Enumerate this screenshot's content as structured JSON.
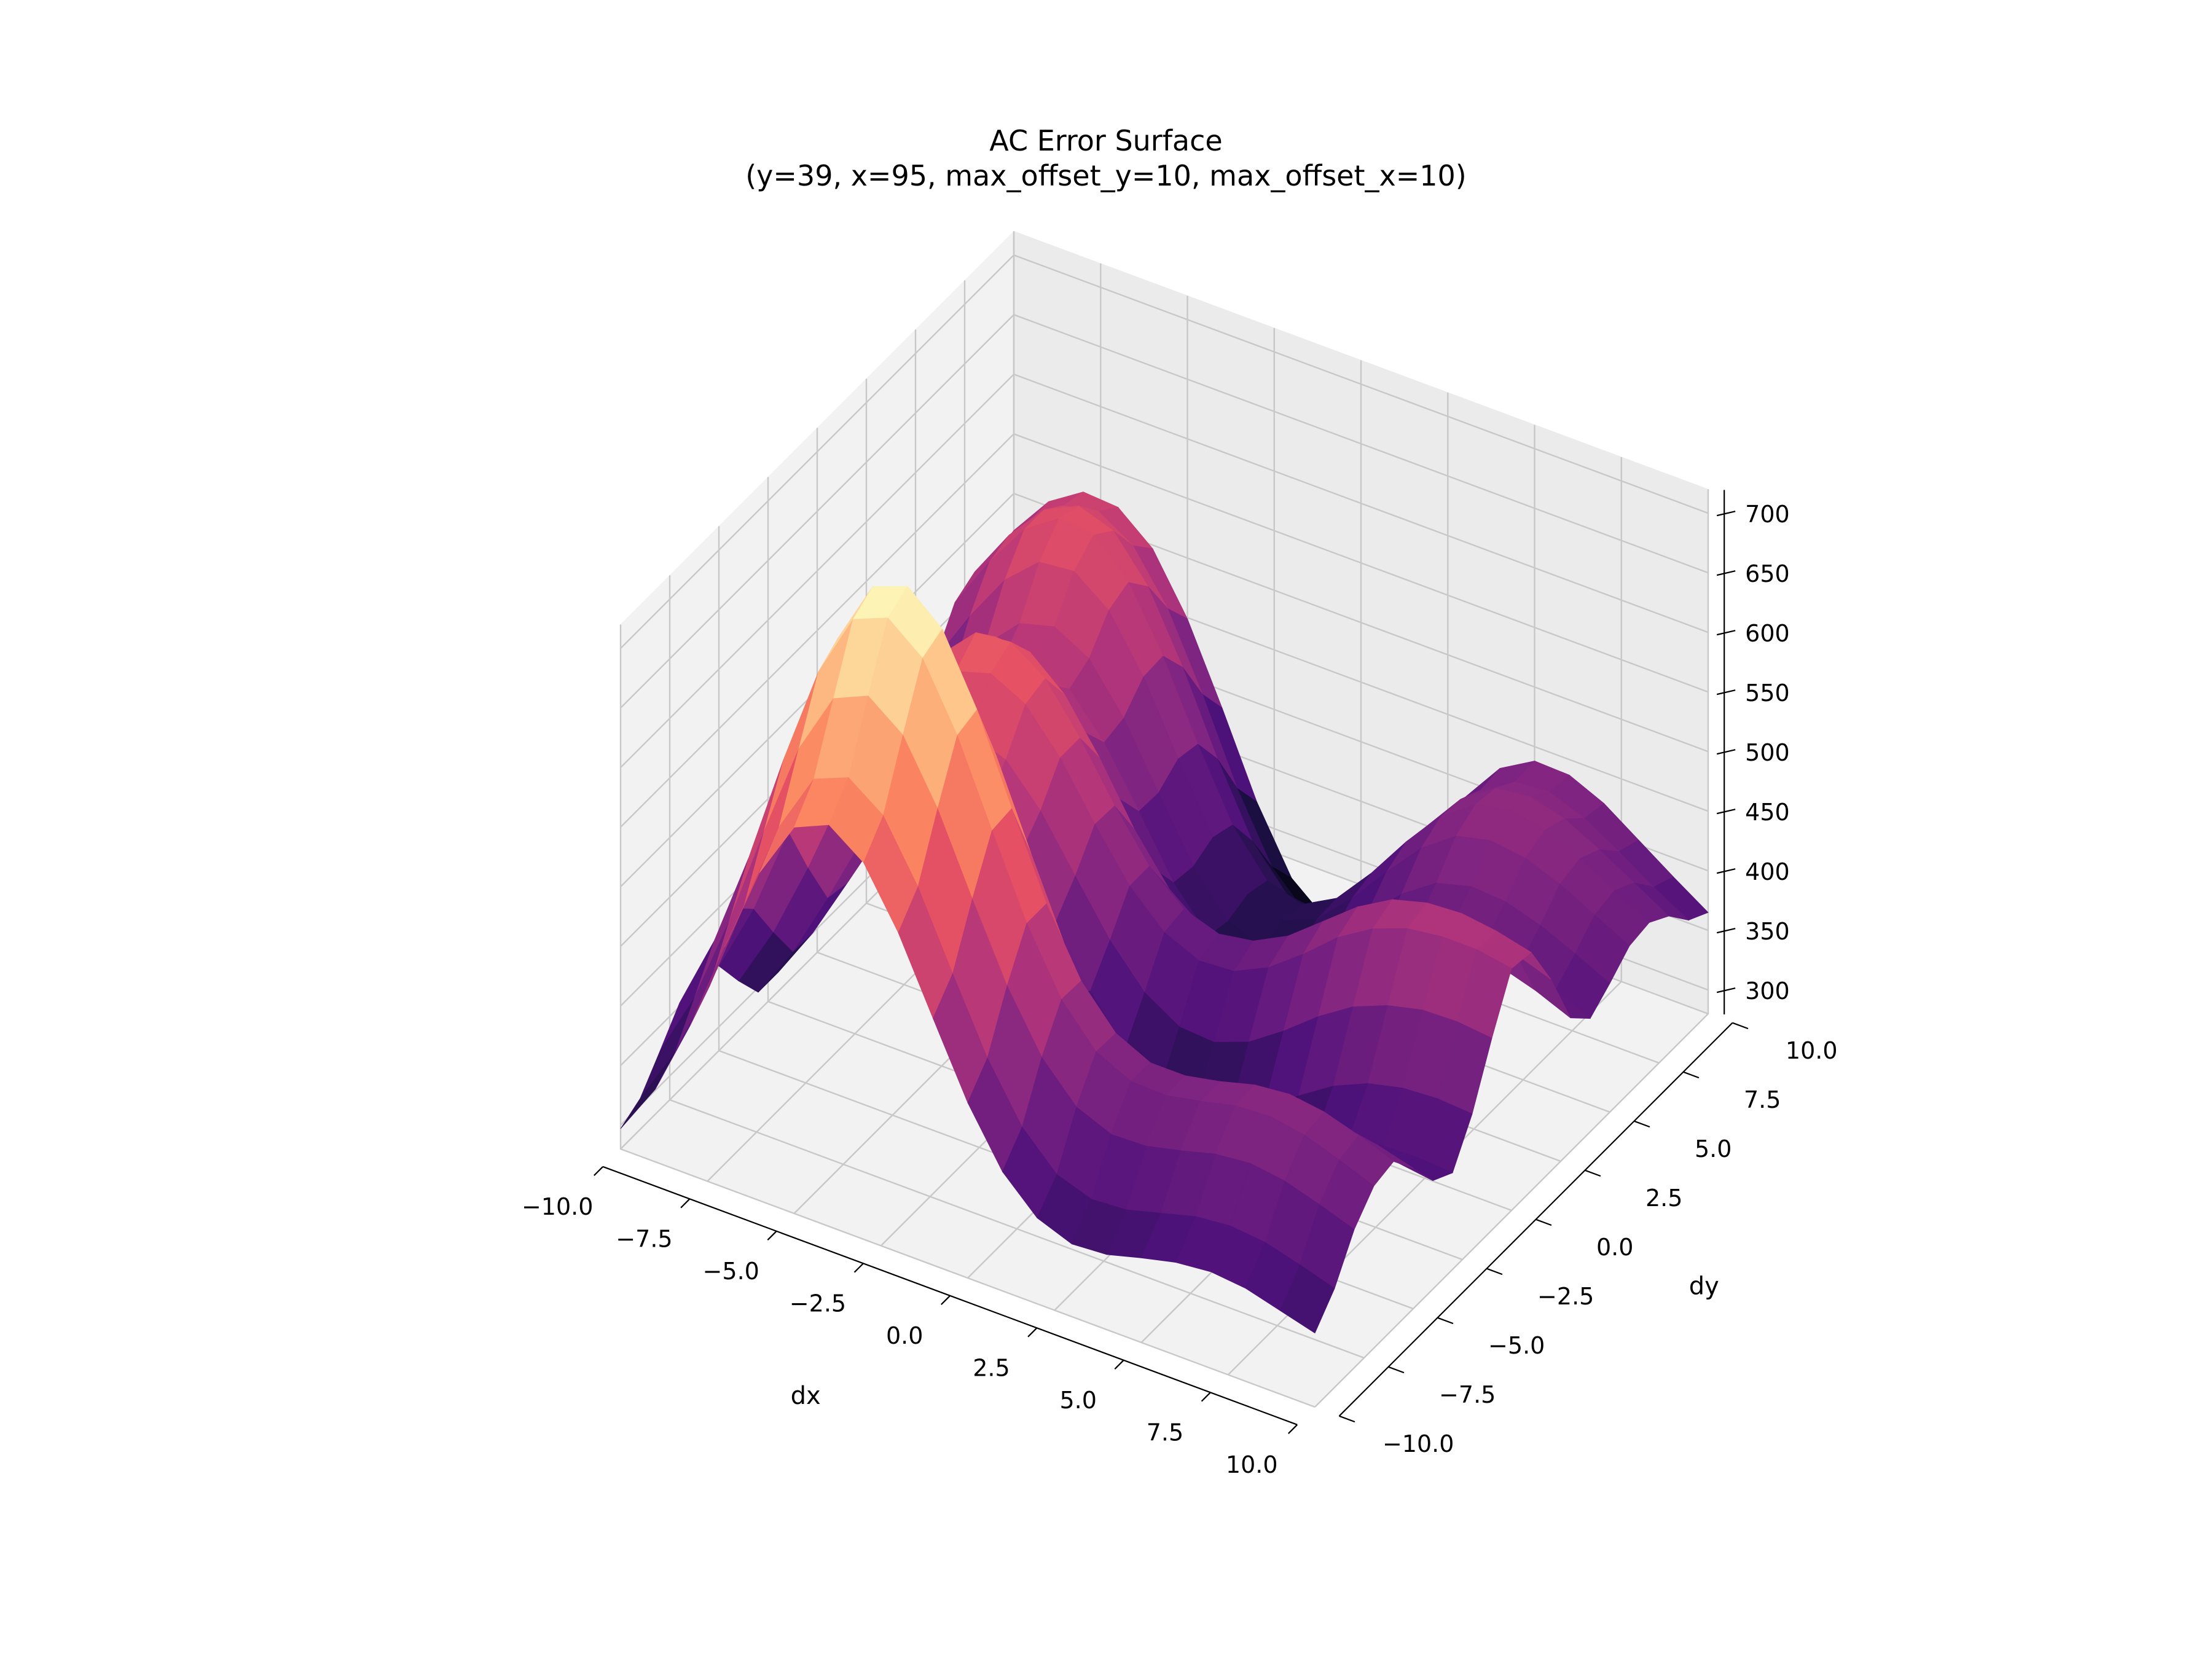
{
  "title": {
    "line1": "AC Error Surface",
    "line2": "(y=39, x=95, max_offset_y=10, max_offset_x=10)"
  },
  "chart_data": {
    "type": "surface3d",
    "title": "AC Error Surface\n(y=39, x=95, max_offset_y=10, max_offset_x=10)",
    "xlabel": "dx",
    "ylabel": "dy",
    "zlabel": "",
    "xlim": [
      -10,
      10
    ],
    "ylim": [
      -10,
      10
    ],
    "zlim": [
      280,
      720
    ],
    "x_ticks": [
      "−10.0",
      "−7.5",
      "−5.0",
      "−2.5",
      "0.0",
      "2.5",
      "5.0",
      "7.5",
      "10.0"
    ],
    "y_ticks": [
      "−10.0",
      "−7.5",
      "−5.0",
      "−2.5",
      "0.0",
      "2.5",
      "5.0",
      "7.5",
      "10.0"
    ],
    "z_ticks": [
      "300",
      "350",
      "400",
      "450",
      "500",
      "550",
      "600",
      "650",
      "700"
    ],
    "colormap": "magma",
    "grid": true,
    "x": [
      -10,
      -9,
      -8,
      -7,
      -6,
      -5,
      -4,
      -3,
      -2,
      -1,
      0,
      1,
      2,
      3,
      4,
      5,
      6,
      7,
      8,
      9,
      10
    ],
    "y": [
      -10,
      -9,
      -8,
      -7,
      -6,
      -5,
      -4,
      -3,
      -2,
      -1,
      0,
      1,
      2,
      3,
      4,
      5,
      6,
      7,
      8,
      9,
      10
    ],
    "z_model": {
      "description_of_values": "z values sampled from the depicted error surface",
      "z": [
        [
          297,
          341,
          405,
          482,
          555,
          604,
          617,
          596,
          548,
          487,
          427,
          380,
          352,
          341,
          343,
          351,
          358,
          361,
          358,
          350,
          342
        ],
        [
          306,
          355,
          422,
          501,
          577,
          628,
          640,
          619,
          570,
          508,
          448,
          401,
          372,
          362,
          364,
          372,
          380,
          383,
          380,
          372,
          363
        ],
        [
          329,
          385,
          460,
          546,
          626,
          679,
          692,
          670,
          619,
          554,
          492,
          443,
          412,
          400,
          401,
          408,
          416,
          419,
          415,
          406,
          396
        ],
        [
          353,
          416,
          497,
          590,
          674,
          729,
          741,
          718,
          664,
          595,
          528,
          475,
          442,
          428,
          427,
          433,
          440,
          442,
          437,
          427,
          416
        ],
        [
          364,
          427,
          509,
          602,
          686,
          740,
          751,
          726,
          669,
          597,
          528,
          474,
          441,
          427,
          427,
          433,
          441,
          444,
          440,
          431,
          420
        ],
        [
          351,
          410,
          486,
          570,
          645,
          692,
          698,
          671,
          613,
          542,
          474,
          422,
          392,
          382,
          385,
          395,
          405,
          412,
          411,
          406,
          398
        ],
        [
          322,
          374,
          439,
          511,
          572,
          608,
          609,
          579,
          523,
          458,
          398,
          355,
          333,
          328,
          336,
          349,
          363,
          373,
          377,
          375,
          371
        ],
        [
          296,
          341,
          397,
          457,
          507,
          532,
          528,
          497,
          446,
          391,
          343,
          311,
          297,
          298,
          310,
          327,
          344,
          356,
          362,
          363,
          361
        ],
        [
          296,
          340,
          393,
          447,
          490,
          509,
          502,
          472,
          425,
          378,
          340,
          317,
          310,
          317,
          334,
          355,
          374,
          387,
          394,
          396,
          394
        ],
        [
          330,
          376,
          429,
          481,
          519,
          533,
          523,
          491,
          447,
          404,
          371,
          353,
          351,
          362,
          382,
          405,
          424,
          436,
          443,
          444,
          441
        ],
        [
          373,
          422,
          476,
          525,
          559,
          568,
          553,
          519,
          474,
          433,
          405,
          392,
          394,
          408,
          430,
          455,
          473,
          484,
          488,
          488,
          483
        ],
        [
          397,
          447,
          500,
          546,
          575,
          578,
          558,
          519,
          473,
          433,
          408,
          398,
          403,
          418,
          441,
          464,
          481,
          489,
          491,
          487,
          480
        ],
        [
          391,
          440,
          490,
          531,
          555,
          553,
          528,
          486,
          437,
          398,
          375,
          368,
          376,
          393,
          416,
          438,
          452,
          458,
          457,
          451,
          441
        ],
        [
          368,
          415,
          462,
          498,
          516,
          509,
          480,
          435,
          387,
          350,
          332,
          330,
          342,
          362,
          385,
          405,
          416,
          418,
          413,
          404,
          392
        ],
        [
          364,
          410,
          454,
          487,
          500,
          489,
          455,
          408,
          359,
          325,
          310,
          314,
          331,
          355,
          380,
          399,
          408,
          407,
          400,
          388,
          375
        ],
        [
          387,
          434,
          477,
          506,
          514,
          498,
          459,
          407,
          356,
          321,
          309,
          318,
          341,
          370,
          398,
          418,
          426,
          424,
          415,
          402,
          388
        ],
        [
          427,
          474,
          515,
          541,
          544,
          522,
          477,
          419,
          364,
          327,
          316,
          328,
          356,
          389,
          420,
          441,
          448,
          444,
          433,
          418,
          403
        ],
        [
          458,
          503,
          541,
          561,
          558,
          529,
          478,
          415,
          358,
          322,
          313,
          329,
          361,
          398,
          430,
          451,
          457,
          451,
          438,
          422,
          406
        ],
        [
          467,
          509,
          541,
          555,
          545,
          509,
          452,
          386,
          328,
          294,
          290,
          312,
          351,
          394,
          428,
          448,
          452,
          444,
          429,
          412,
          395
        ],
        [
          465,
          503,
          528,
          534,
          516,
          474,
          413,
          345,
          290,
          261,
          264,
          294,
          339,
          385,
          419,
          437,
          439,
          428,
          411,
          392,
          375
        ],
        [
          469,
          504,
          523,
          521,
          497,
          449,
          385,
          317,
          264,
          240,
          248,
          285,
          336,
          386,
          421,
          438,
          437,
          424,
          404,
          384,
          365
        ]
      ]
    }
  }
}
